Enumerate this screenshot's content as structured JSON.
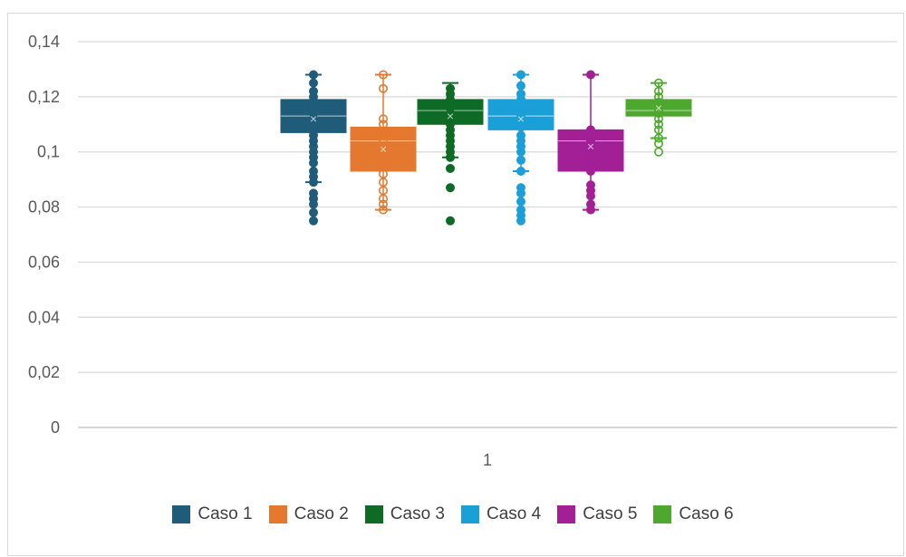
{
  "chart_data": {
    "type": "box",
    "categories": [
      "1"
    ],
    "ylim": [
      0,
      0.14
    ],
    "y_ticks": [
      "0",
      "0,02",
      "0,04",
      "0,06",
      "0,08",
      "0,1",
      "0,12",
      "0,14"
    ],
    "grid": true,
    "legend_position": "bottom",
    "series": [
      {
        "name": "Caso 1",
        "color": "#1f5c7a",
        "filled_points": true,
        "min": 0.089,
        "q1": 0.107,
        "median": 0.113,
        "mean": 0.112,
        "q3": 0.119,
        "max": 0.128,
        "points": [
          0.128,
          0.125,
          0.122,
          0.12,
          0.118,
          0.116,
          0.114,
          0.112,
          0.11,
          0.108,
          0.106,
          0.104,
          0.102,
          0.1,
          0.098,
          0.096,
          0.093,
          0.091,
          0.089,
          0.085,
          0.083,
          0.081,
          0.078,
          0.075
        ]
      },
      {
        "name": "Caso 2",
        "color": "#e5782f",
        "filled_points": false,
        "min": 0.079,
        "q1": 0.093,
        "median": 0.104,
        "mean": 0.101,
        "q3": 0.109,
        "max": 0.128,
        "points": [
          0.128,
          0.123,
          0.112,
          0.11,
          0.107,
          0.104,
          0.102,
          0.1,
          0.097,
          0.095,
          0.092,
          0.089,
          0.086,
          0.083,
          0.081,
          0.079
        ]
      },
      {
        "name": "Caso 3",
        "color": "#0e6b26",
        "filled_points": true,
        "min": 0.098,
        "q1": 0.11,
        "median": 0.115,
        "mean": 0.113,
        "q3": 0.119,
        "max": 0.125,
        "points": [
          0.123,
          0.121,
          0.119,
          0.117,
          0.116,
          0.114,
          0.112,
          0.11,
          0.108,
          0.106,
          0.104,
          0.102,
          0.1,
          0.098,
          0.094,
          0.087,
          0.075
        ]
      },
      {
        "name": "Caso 4",
        "color": "#1b9fd8",
        "filled_points": true,
        "min": 0.093,
        "q1": 0.108,
        "median": 0.113,
        "mean": 0.112,
        "q3": 0.119,
        "max": 0.128,
        "points": [
          0.128,
          0.124,
          0.121,
          0.119,
          0.117,
          0.115,
          0.113,
          0.111,
          0.109,
          0.106,
          0.104,
          0.102,
          0.1,
          0.097,
          0.093,
          0.087,
          0.085,
          0.082,
          0.079,
          0.077,
          0.075
        ]
      },
      {
        "name": "Caso 5",
        "color": "#a21f96",
        "filled_points": true,
        "min": 0.079,
        "q1": 0.093,
        "median": 0.104,
        "mean": 0.102,
        "q3": 0.108,
        "max": 0.128,
        "points": [
          0.128,
          0.108,
          0.106,
          0.104,
          0.102,
          0.1,
          0.098,
          0.096,
          0.093,
          0.088,
          0.086,
          0.084,
          0.081,
          0.079
        ]
      },
      {
        "name": "Caso 6",
        "color": "#4ea72e",
        "filled_points": false,
        "min": 0.105,
        "q1": 0.113,
        "median": 0.115,
        "mean": 0.116,
        "q3": 0.119,
        "max": 0.125,
        "points": [
          0.125,
          0.122,
          0.12,
          0.118,
          0.116,
          0.115,
          0.114,
          0.112,
          0.11,
          0.108,
          0.105,
          0.103,
          0.1
        ]
      }
    ]
  }
}
